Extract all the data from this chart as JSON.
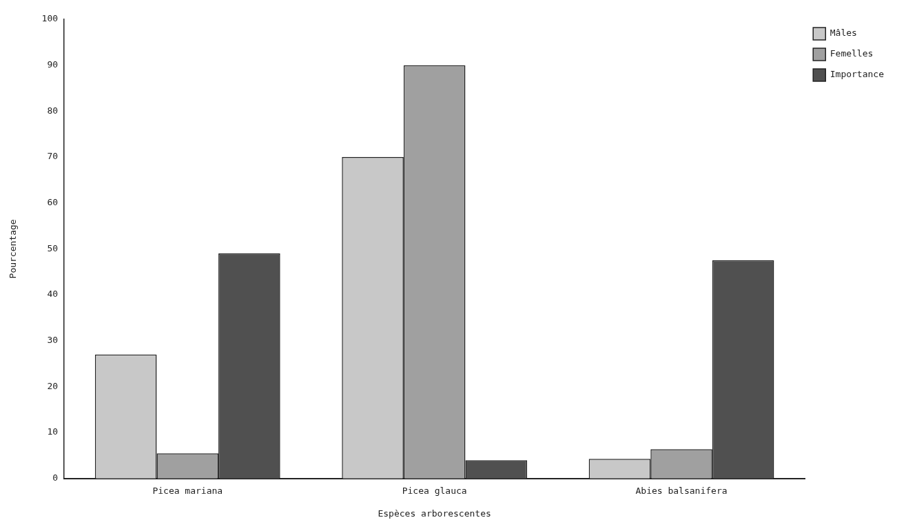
{
  "chart_data": {
    "type": "bar",
    "xlabel": "Espèces arborescentes",
    "ylabel": "Pourcentage",
    "categories": [
      "Picea mariana",
      "Picea glauca",
      "Abies balsanifera"
    ],
    "series": [
      {
        "name": "Mâles",
        "color": "#c8c8c8",
        "values": [
          27,
          70,
          4.3
        ]
      },
      {
        "name": "Femelles",
        "color": "#a0a0a0",
        "values": [
          5.5,
          90,
          6.4
        ]
      },
      {
        "name": "Importance",
        "color": "#505050",
        "values": [
          49,
          4,
          47.5
        ]
      }
    ],
    "ylim": [
      0,
      100
    ],
    "yticks": [
      0,
      10,
      20,
      30,
      40,
      50,
      60,
      70,
      80,
      90,
      100
    ],
    "grid": false,
    "legend": "top right"
  }
}
